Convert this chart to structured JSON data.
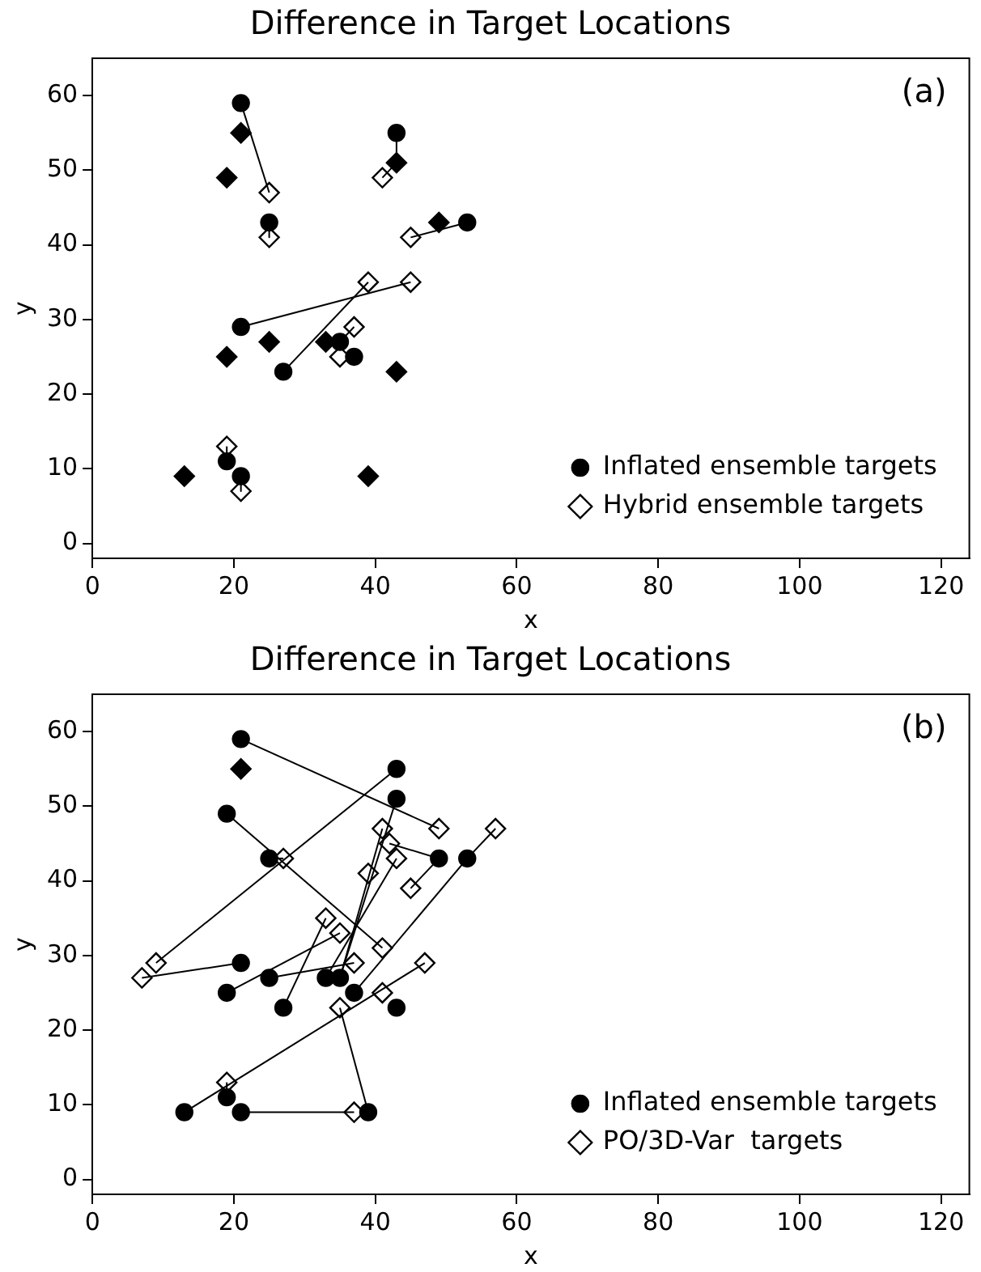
{
  "chart_data": [
    {
      "type": "scatter",
      "title": "Difference in Target Locations",
      "xlabel": "x",
      "ylabel": "y",
      "xlim": [
        0,
        124
      ],
      "ylim": [
        -2,
        65
      ],
      "xticks": [
        0,
        20,
        40,
        60,
        80,
        100,
        120
      ],
      "yticks": [
        0,
        10,
        20,
        30,
        40,
        50,
        60
      ],
      "grid": false,
      "legend": "bottom right",
      "annotations": [
        "(a)"
      ],
      "series": [
        {
          "type": "line",
          "color": "#000000",
          "marker": "none",
          "x": [
            21,
            25
          ],
          "values": [
            59,
            47
          ]
        },
        {
          "type": "line",
          "color": "#000000",
          "marker": "none",
          "x": [
            25,
            25
          ],
          "values": [
            43,
            41
          ]
        },
        {
          "type": "line",
          "color": "#000000",
          "marker": "none",
          "x": [
            43,
            43
          ],
          "values": [
            55,
            51
          ]
        },
        {
          "type": "line",
          "color": "#000000",
          "marker": "none",
          "x": [
            41,
            43
          ],
          "values": [
            49,
            51
          ]
        },
        {
          "type": "line",
          "color": "#000000",
          "marker": "none",
          "x": [
            53,
            45
          ],
          "values": [
            43,
            41
          ]
        },
        {
          "type": "line",
          "color": "#000000",
          "marker": "none",
          "x": [
            21,
            45
          ],
          "values": [
            29,
            35
          ]
        },
        {
          "type": "line",
          "color": "#000000",
          "marker": "none",
          "x": [
            27,
            39
          ],
          "values": [
            23,
            35
          ]
        },
        {
          "type": "line",
          "color": "#000000",
          "marker": "none",
          "x": [
            35,
            37
          ],
          "values": [
            27,
            29
          ]
        },
        {
          "type": "line",
          "color": "#000000",
          "marker": "none",
          "x": [
            19,
            19
          ],
          "values": [
            11,
            13
          ]
        },
        {
          "type": "line",
          "color": "#000000",
          "marker": "none",
          "x": [
            21,
            21
          ],
          "values": [
            9,
            7
          ]
        },
        {
          "name": "Inflated ensemble targets",
          "color": "#000000",
          "marker": "circle",
          "x": [
            21,
            43,
            25,
            53,
            21,
            27,
            35,
            37,
            19,
            21
          ],
          "values": [
            59,
            55,
            43,
            43,
            29,
            23,
            27,
            25,
            11,
            9
          ]
        },
        {
          "name": "Hybrid ensemble targets",
          "color": "#ffffff",
          "marker": "diamond",
          "x": [
            25,
            41,
            25,
            45,
            39,
            45,
            37,
            35,
            19,
            21
          ],
          "values": [
            47,
            49,
            41,
            41,
            35,
            35,
            29,
            25,
            13,
            7
          ]
        },
        {
          "color": "#000000",
          "marker": "diamond",
          "x": [
            21,
            19,
            43,
            49,
            19,
            25,
            33,
            43,
            13,
            39
          ],
          "values": [
            55,
            49,
            51,
            43,
            25,
            27,
            27,
            23,
            9,
            9
          ]
        }
      ]
    },
    {
      "type": "scatter",
      "title": "Difference in Target Locations",
      "xlabel": "x",
      "ylabel": "y",
      "xlim": [
        0,
        124
      ],
      "ylim": [
        -2,
        65
      ],
      "xticks": [
        0,
        20,
        40,
        60,
        80,
        100,
        120
      ],
      "yticks": [
        0,
        10,
        20,
        30,
        40,
        50,
        60
      ],
      "grid": false,
      "legend": "bottom right",
      "annotations": [
        "(b)"
      ],
      "series": [
        {
          "type": "line",
          "color": "#000000",
          "marker": "none",
          "x": [
            21,
            49
          ],
          "values": [
            59,
            47
          ]
        },
        {
          "type": "line",
          "color": "#000000",
          "marker": "none",
          "x": [
            43,
            9
          ],
          "values": [
            55,
            29
          ]
        },
        {
          "type": "line",
          "color": "#000000",
          "marker": "none",
          "x": [
            43,
            35
          ],
          "values": [
            51,
            27
          ]
        },
        {
          "type": "line",
          "color": "#000000",
          "marker": "none",
          "x": [
            19,
            41
          ],
          "values": [
            49,
            31
          ]
        },
        {
          "type": "line",
          "color": "#000000",
          "marker": "none",
          "x": [
            25,
            27
          ],
          "values": [
            43,
            43
          ]
        },
        {
          "type": "line",
          "color": "#000000",
          "marker": "none",
          "x": [
            49,
            45
          ],
          "values": [
            43,
            39
          ]
        },
        {
          "type": "line",
          "color": "#000000",
          "marker": "none",
          "x": [
            53,
            37
          ],
          "values": [
            43,
            25
          ]
        },
        {
          "type": "line",
          "color": "#000000",
          "marker": "none",
          "x": [
            57,
            53
          ],
          "values": [
            47,
            43
          ]
        },
        {
          "type": "line",
          "color": "#000000",
          "marker": "none",
          "x": [
            42,
            49
          ],
          "values": [
            45,
            43
          ]
        },
        {
          "type": "line",
          "color": "#000000",
          "marker": "none",
          "x": [
            21,
            7
          ],
          "values": [
            29,
            27
          ]
        },
        {
          "type": "line",
          "color": "#000000",
          "marker": "none",
          "x": [
            19,
            35
          ],
          "values": [
            25,
            33
          ]
        },
        {
          "type": "line",
          "color": "#000000",
          "marker": "none",
          "x": [
            25,
            37
          ],
          "values": [
            27,
            29
          ]
        },
        {
          "type": "line",
          "color": "#000000",
          "marker": "none",
          "x": [
            27,
            33
          ],
          "values": [
            23,
            35
          ]
        },
        {
          "type": "line",
          "color": "#000000",
          "marker": "none",
          "x": [
            33,
            43
          ],
          "values": [
            27,
            43
          ]
        },
        {
          "type": "line",
          "color": "#000000",
          "marker": "none",
          "x": [
            35,
            41
          ],
          "values": [
            27,
            47
          ]
        },
        {
          "type": "line",
          "color": "#000000",
          "marker": "none",
          "x": [
            13,
            47
          ],
          "values": [
            9,
            29
          ]
        },
        {
          "type": "line",
          "color": "#000000",
          "marker": "none",
          "x": [
            19,
            19
          ],
          "values": [
            11,
            13
          ]
        },
        {
          "type": "line",
          "color": "#000000",
          "marker": "none",
          "x": [
            21,
            37
          ],
          "values": [
            9,
            9
          ]
        },
        {
          "type": "line",
          "color": "#000000",
          "marker": "none",
          "x": [
            39,
            35
          ],
          "values": [
            9,
            23
          ]
        },
        {
          "name": "Inflated ensemble targets",
          "color": "#000000",
          "marker": "circle",
          "x": [
            21,
            43,
            43,
            19,
            25,
            49,
            53,
            21,
            19,
            25,
            33,
            35,
            37,
            27,
            43,
            13,
            19,
            21,
            39
          ],
          "values": [
            59,
            55,
            51,
            49,
            43,
            43,
            43,
            29,
            25,
            27,
            27,
            27,
            25,
            23,
            23,
            9,
            11,
            9,
            9
          ]
        },
        {
          "name": "PO/3D-Var  targets",
          "color": "#ffffff",
          "marker": "diamond",
          "x": [
            49,
            57,
            41,
            42,
            27,
            43,
            39,
            45,
            33,
            35,
            37,
            41,
            9,
            7,
            47,
            41,
            35,
            19,
            37
          ],
          "values": [
            47,
            47,
            47,
            45,
            43,
            43,
            41,
            39,
            35,
            33,
            29,
            31,
            29,
            27,
            29,
            25,
            23,
            13,
            9
          ]
        },
        {
          "color": "#000000",
          "marker": "diamond",
          "x": [
            21
          ],
          "values": [
            55
          ]
        }
      ]
    }
  ]
}
